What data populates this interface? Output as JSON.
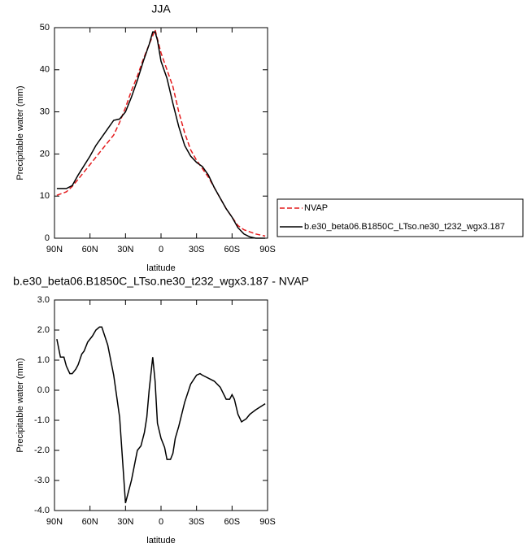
{
  "chart_data": [
    {
      "type": "line",
      "title": "JJA",
      "xlabel": "latitude",
      "ylabel": "Precipitable water (mm)",
      "xlim": [
        90,
        -90
      ],
      "xticks": [
        {
          "value": 90,
          "label": "90N"
        },
        {
          "value": 60,
          "label": "60N"
        },
        {
          "value": 30,
          "label": "30N"
        },
        0,
        {
          "value": -30,
          "label": "30S"
        },
        {
          "value": -60,
          "label": "60S"
        },
        {
          "value": -90,
          "label": "90S"
        }
      ],
      "ylim": [
        0,
        50
      ],
      "yticks": [
        0,
        10,
        20,
        30,
        40,
        50
      ],
      "legend": "right",
      "series": [
        {
          "name": "NVAP",
          "color": "#e41a1c",
          "dashed": true,
          "x": [
            88,
            80,
            75,
            70,
            60,
            50,
            40,
            35,
            30,
            25,
            20,
            15,
            10,
            5,
            0,
            -5,
            -10,
            -15,
            -20,
            -25,
            -30,
            -35,
            -40,
            -45,
            -50,
            -55,
            -60,
            -65,
            -70,
            -80,
            -88
          ],
          "values": [
            10.2,
            11,
            12.3,
            14,
            17.5,
            21,
            24.5,
            27.5,
            31,
            35,
            38.5,
            42.5,
            46,
            49.5,
            44,
            40,
            36,
            30,
            25,
            21,
            18.5,
            16.5,
            14.5,
            12,
            9.5,
            7,
            5,
            3,
            2,
            1,
            0.5
          ]
        },
        {
          "name": "b.e30_beta06.B1850C_LTso.ne30_t232_wgx3.187",
          "color": "#000000",
          "dashed": false,
          "x": [
            88,
            80,
            75,
            70,
            60,
            55,
            50,
            45,
            40,
            35,
            30,
            25,
            20,
            15,
            10,
            7,
            5,
            3,
            0,
            -5,
            -10,
            -15,
            -20,
            -25,
            -30,
            -35,
            -40,
            -45,
            -50,
            -55,
            -60,
            -65,
            -70,
            -75,
            -80,
            -88
          ],
          "values": [
            11.8,
            11.8,
            12.5,
            15,
            19.5,
            22,
            24,
            26,
            28,
            28.3,
            30,
            33.5,
            37.5,
            42,
            46,
            49,
            49,
            47,
            42,
            38,
            32,
            26.5,
            22,
            19.5,
            18,
            17,
            15,
            12,
            9.5,
            7,
            5,
            2.5,
            1,
            0.3,
            0,
            0
          ]
        }
      ]
    },
    {
      "type": "line",
      "title": "b.e30_beta06.B1850C_LTso.ne30_t232_wgx3.187 - NVAP",
      "xlabel": "latitude",
      "ylabel": "Precipitable water (mm)",
      "xlim": [
        90,
        -90
      ],
      "xticks": [
        {
          "value": 90,
          "label": "90N"
        },
        {
          "value": 60,
          "label": "60N"
        },
        {
          "value": 30,
          "label": "30N"
        },
        0,
        {
          "value": -30,
          "label": "30S"
        },
        {
          "value": -60,
          "label": "60S"
        },
        {
          "value": -90,
          "label": "90S"
        }
      ],
      "ylim": [
        -4,
        3
      ],
      "yticks": [
        {
          "value": -4,
          "label": "-4.0"
        },
        {
          "value": -3,
          "label": "-3.0"
        },
        {
          "value": -2,
          "label": "-2.0"
        },
        {
          "value": -1,
          "label": "-1.0"
        },
        {
          "value": 0,
          "label": "0.0"
        },
        {
          "value": 1,
          "label": "1.0"
        },
        {
          "value": 2,
          "label": "2.0"
        },
        {
          "value": 3,
          "label": "3.0"
        }
      ],
      "series": [
        {
          "color": "#000000",
          "dashed": false,
          "x": [
            88,
            85,
            82,
            80,
            77,
            75,
            72,
            70,
            67,
            65,
            62,
            58,
            55,
            52,
            50,
            45,
            40,
            35,
            30,
            25,
            20,
            17,
            14,
            12,
            10,
            7,
            5,
            3,
            0,
            -3,
            -5,
            -8,
            -10,
            -12,
            -15,
            -20,
            -25,
            -30,
            -33,
            -35,
            -40,
            -45,
            -50,
            -55,
            -58,
            -60,
            -62,
            -65,
            -68,
            -72,
            -75,
            -80,
            -88
          ],
          "values": [
            1.7,
            1.1,
            1.1,
            0.8,
            0.55,
            0.55,
            0.7,
            0.85,
            1.2,
            1.3,
            1.6,
            1.8,
            2.0,
            2.1,
            2.1,
            1.5,
            0.5,
            -0.9,
            -3.75,
            -3.0,
            -2.0,
            -1.85,
            -1.4,
            -0.9,
            0,
            1.1,
            0.3,
            -1.1,
            -1.6,
            -1.9,
            -2.3,
            -2.3,
            -2.1,
            -1.6,
            -1.2,
            -0.4,
            0.2,
            0.5,
            0.55,
            0.5,
            0.4,
            0.3,
            0.1,
            -0.3,
            -0.3,
            -0.15,
            -0.3,
            -0.8,
            -1.05,
            -0.95,
            -0.8,
            -0.65,
            -0.45
          ]
        }
      ]
    }
  ]
}
